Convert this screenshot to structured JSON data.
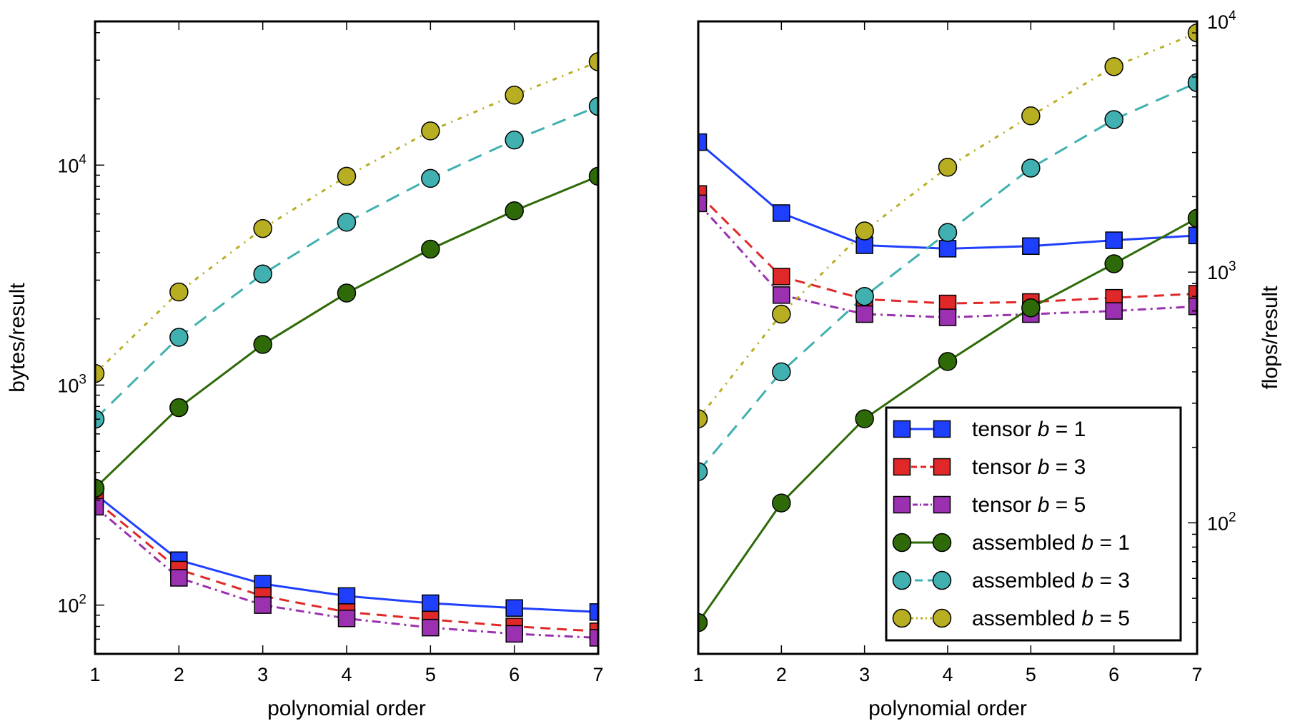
{
  "chart_data": [
    {
      "type": "line",
      "xlabel": "polynomial order",
      "ylabel": "bytes/result",
      "yscale": "log",
      "xlim": [
        1,
        7
      ],
      "ylim": [
        60,
        45000
      ],
      "x_ticks": [
        "1",
        "2",
        "3",
        "4",
        "5",
        "6",
        "7"
      ],
      "y_ticks": [
        {
          "value": 100,
          "base": "10",
          "exp": "2"
        },
        {
          "value": 1000,
          "base": "10",
          "exp": "3"
        },
        {
          "value": 10000,
          "base": "10",
          "exp": "4"
        }
      ],
      "x": [
        1,
        2,
        3,
        4,
        5,
        6,
        7
      ],
      "series": [
        {
          "key": "tensor-b1",
          "color": "#1f3fff",
          "dash": "",
          "marker": "square",
          "values": [
            320,
            160,
            125,
            110,
            102,
            97,
            93
          ]
        },
        {
          "key": "tensor-b3",
          "color": "#e02828",
          "dash": "14,9",
          "marker": "square",
          "values": [
            300,
            145,
            110,
            93,
            86,
            80,
            76
          ]
        },
        {
          "key": "tensor-b5",
          "color": "#9b30b0",
          "dash": "12,6,3,6",
          "marker": "square",
          "values": [
            280,
            133,
            100,
            87,
            79,
            74,
            71
          ]
        },
        {
          "key": "assembled-b1",
          "color": "#2e6a07",
          "dash": "",
          "marker": "circle",
          "values": [
            340,
            790,
            1530,
            2620,
            4150,
            6200,
            8900
          ]
        },
        {
          "key": "assembled-b3",
          "color": "#40b0b0",
          "dash": "20,12",
          "marker": "circle",
          "values": [
            700,
            1650,
            3200,
            5500,
            8700,
            13000,
            18500
          ]
        },
        {
          "key": "assembled-b5",
          "color": "#b8ae22",
          "dash": "6,8,2,8",
          "marker": "circle",
          "values": [
            1130,
            2650,
            5150,
            8900,
            14300,
            20800,
            29500
          ]
        }
      ]
    },
    {
      "type": "line",
      "xlabel": "polynomial order",
      "ylabel": "flops/result",
      "yscale": "log",
      "xlim": [
        1,
        7
      ],
      "ylim": [
        30,
        10000
      ],
      "x_ticks": [
        "1",
        "2",
        "3",
        "4",
        "5",
        "6",
        "7"
      ],
      "y_ticks": [
        {
          "value": 100,
          "base": "10",
          "exp": "2"
        },
        {
          "value": 1000,
          "base": "10",
          "exp": "3"
        },
        {
          "value": 10000,
          "base": "10",
          "exp": "4"
        }
      ],
      "x": [
        1,
        2,
        3,
        4,
        5,
        6,
        7
      ],
      "series": [
        {
          "key": "tensor-b1",
          "color": "#1f3fff",
          "dash": "",
          "marker": "square",
          "values": [
            3300,
            1720,
            1280,
            1240,
            1270,
            1340,
            1400
          ]
        },
        {
          "key": "tensor-b3",
          "color": "#e02828",
          "dash": "14,9",
          "marker": "square",
          "values": [
            2050,
            960,
            780,
            750,
            760,
            790,
            820
          ]
        },
        {
          "key": "tensor-b5",
          "color": "#9b30b0",
          "dash": "12,6,3,6",
          "marker": "square",
          "values": [
            1880,
            810,
            680,
            660,
            680,
            700,
            730
          ]
        },
        {
          "key": "assembled-b1",
          "color": "#2e6a07",
          "dash": "",
          "marker": "circle",
          "values": [
            40,
            120,
            260,
            440,
            720,
            1080,
            1640
          ]
        },
        {
          "key": "assembled-b3",
          "color": "#40b0b0",
          "dash": "20,12",
          "marker": "circle",
          "values": [
            160,
            400,
            800,
            1440,
            2600,
            4060,
            5700
          ]
        },
        {
          "key": "assembled-b5",
          "color": "#b8ae22",
          "dash": "6,8,2,8",
          "marker": "circle",
          "values": [
            260,
            680,
            1460,
            2620,
            4200,
            6600,
            9000
          ]
        }
      ],
      "legend": {
        "placement": "lower-right",
        "entries": [
          {
            "key": "tensor-b1",
            "prefix": "tensor ",
            "var": "b",
            "suffix": " = 1"
          },
          {
            "key": "tensor-b3",
            "prefix": "tensor ",
            "var": "b",
            "suffix": " = 3"
          },
          {
            "key": "tensor-b5",
            "prefix": "tensor ",
            "var": "b",
            "suffix": " = 5"
          },
          {
            "key": "assembled-b1",
            "prefix": "assembled ",
            "var": "b",
            "suffix": " = 1"
          },
          {
            "key": "assembled-b3",
            "prefix": "assembled ",
            "var": "b",
            "suffix": " = 3"
          },
          {
            "key": "assembled-b5",
            "prefix": "assembled ",
            "var": "b",
            "suffix": " = 5"
          }
        ]
      }
    }
  ]
}
